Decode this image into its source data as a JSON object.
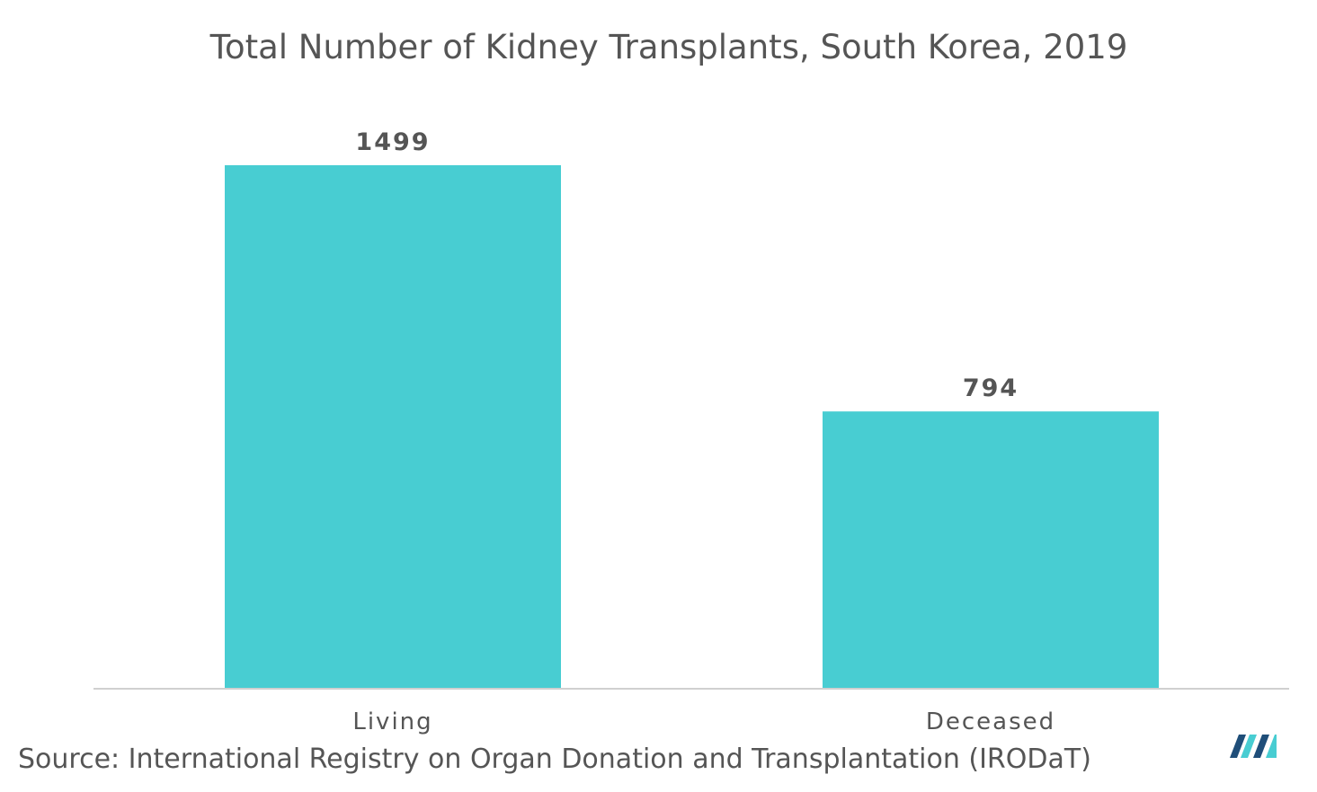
{
  "chart_data": {
    "type": "bar",
    "title": "Total Number of Kidney Transplants, South Korea, 2019",
    "categories": [
      "Living",
      "Deceased"
    ],
    "values": [
      1499,
      794
    ],
    "data_labels": [
      "1499",
      "794"
    ],
    "xlabel": "",
    "ylabel": "",
    "ylim": [
      0,
      1499
    ],
    "grid": false,
    "legend": "none",
    "bar_color": "#48CDD2",
    "axis_color": "#D0D0D0"
  },
  "source": "Source: International Registry on Organ Donation and Transplantation (IRODaT)",
  "logo": {
    "name": "brand-logo-icon",
    "colors": [
      "#1F4E79",
      "#48CDD2"
    ]
  }
}
